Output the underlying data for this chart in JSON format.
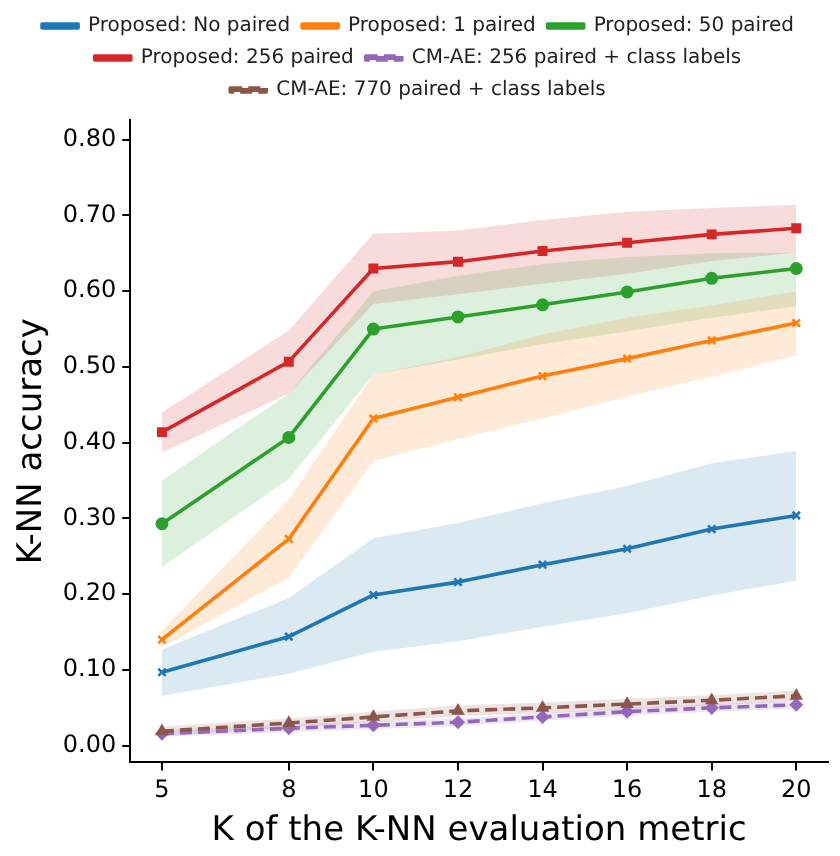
{
  "chart_data": {
    "type": "line",
    "xlabel": "K of the K-NN evaluation metric",
    "ylabel": "K-NN accuracy",
    "x": [
      5,
      8,
      10,
      12,
      14,
      16,
      18,
      20
    ],
    "xlim": [
      4.25,
      20.75
    ],
    "xticks": [
      5,
      8,
      10,
      12,
      14,
      16,
      18,
      20
    ],
    "ylim": [
      -0.022,
      0.826
    ],
    "yticks": [
      {
        "value": 0,
        "label": "0.00"
      },
      {
        "value": 0.1,
        "label": "0.10"
      },
      {
        "value": 0.2,
        "label": "0.20"
      },
      {
        "value": 0.3,
        "label": "0.30"
      },
      {
        "value": 0.4,
        "label": "0.40"
      },
      {
        "value": 0.5,
        "label": "0.50"
      },
      {
        "value": 0.6,
        "label": "0.60"
      },
      {
        "value": 0.7,
        "label": "0.70"
      },
      {
        "value": 0.8,
        "label": "0.80"
      }
    ],
    "grid": false,
    "legend": "top",
    "line_style": "solid",
    "series": [
      {
        "name": "Proposed: No paired",
        "color": "#1f77b4",
        "marker": "cross",
        "values": [
          0.097,
          0.144,
          0.199,
          0.216,
          0.239,
          0.26,
          0.286,
          0.304
        ],
        "lower": [
          0.066,
          0.095,
          0.124,
          0.138,
          0.157,
          0.175,
          0.198,
          0.218
        ],
        "upper": [
          0.127,
          0.195,
          0.274,
          0.294,
          0.32,
          0.343,
          0.373,
          0.389
        ]
      },
      {
        "name": "Proposed: 1 paired",
        "color": "#ff7f0e",
        "marker": "cross",
        "values": [
          0.14,
          0.273,
          0.432,
          0.46,
          0.488,
          0.511,
          0.535,
          0.558
        ],
        "lower": [
          0.13,
          0.222,
          0.376,
          0.405,
          0.432,
          0.461,
          0.487,
          0.515
        ],
        "upper": [
          0.152,
          0.325,
          0.49,
          0.513,
          0.543,
          0.565,
          0.581,
          0.6
        ]
      },
      {
        "name": "Proposed: 50 paired",
        "color": "#2ca02c",
        "marker": "circle",
        "values": [
          0.293,
          0.407,
          0.55,
          0.566,
          0.582,
          0.599,
          0.617,
          0.63
        ],
        "lower": [
          0.236,
          0.352,
          0.49,
          0.51,
          0.53,
          0.547,
          0.565,
          0.58
        ],
        "upper": [
          0.35,
          0.465,
          0.6,
          0.62,
          0.636,
          0.645,
          0.65,
          0.651
        ]
      },
      {
        "name": "Proposed: 256 paired",
        "color": "#d62728",
        "marker": "square",
        "values": [
          0.414,
          0.507,
          0.63,
          0.639,
          0.653,
          0.664,
          0.675,
          0.683
        ],
        "lower": [
          0.387,
          0.465,
          0.583,
          0.596,
          0.61,
          0.623,
          0.64,
          0.651
        ],
        "upper": [
          0.44,
          0.548,
          0.676,
          0.68,
          0.694,
          0.705,
          0.71,
          0.714
        ]
      },
      {
        "name": "CM-AE: 256 paired + class labels",
        "color": "#9467bd",
        "marker": "diamond",
        "line_style": "dashed",
        "values": [
          0.016,
          0.023,
          0.027,
          0.031,
          0.038,
          0.045,
          0.05,
          0.054
        ],
        "lower": [
          0.012,
          0.018,
          0.022,
          0.026,
          0.033,
          0.04,
          0.045,
          0.049
        ],
        "upper": [
          0.02,
          0.028,
          0.032,
          0.036,
          0.043,
          0.05,
          0.055,
          0.059
        ]
      },
      {
        "name": "CM-AE: 770 paired + class labels",
        "color": "#8c564b",
        "marker": "triangle",
        "line_style": "dashed",
        "values": [
          0.019,
          0.03,
          0.038,
          0.046,
          0.05,
          0.055,
          0.06,
          0.066
        ],
        "lower": [
          0.013,
          0.024,
          0.031,
          0.039,
          0.043,
          0.048,
          0.053,
          0.059
        ],
        "upper": [
          0.025,
          0.036,
          0.045,
          0.053,
          0.057,
          0.062,
          0.067,
          0.073
        ]
      }
    ]
  }
}
